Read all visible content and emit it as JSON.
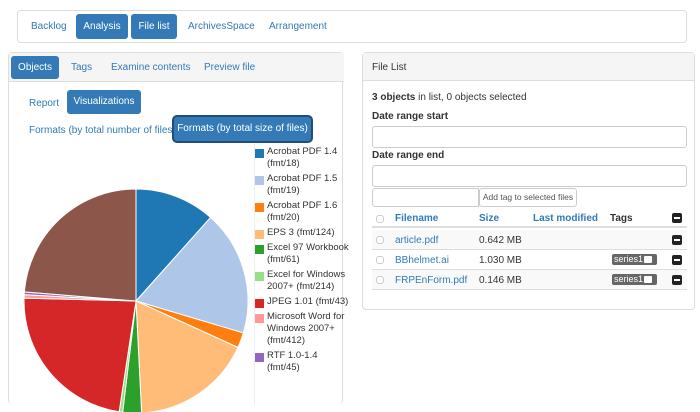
{
  "nav": {
    "tabs": [
      "Backlog",
      "Analysis",
      "File list",
      "ArchivesSpace",
      "Arrangement"
    ]
  },
  "left_panel": {
    "tabs": [
      "Objects",
      "Tags",
      "Examine contents",
      "Preview file"
    ],
    "subtabs": [
      "Report",
      "Visualizations"
    ],
    "chart_options": [
      "Formats (by total number of files)",
      "Formats (by total size of files)"
    ]
  },
  "chart_data": {
    "type": "pie",
    "categories": [
      "Acrobat PDF 1.4 (fmt/18)",
      "Acrobat PDF 1.5 (fmt/19)",
      "Acrobat PDF 1.6 (fmt/20)",
      "EPS 3 (fmt/124)",
      "Excel 97 Workbook (fmt/61)",
      "Excel for Windows 2007+ (fmt/214)",
      "JPEG 1.01 (fmt/43)",
      "Microsoft Word for Windows 2007+ (fmt/412)",
      "RTF 1.0-1.4 (fmt/45)",
      null
    ],
    "values": [
      11.6,
      18,
      2.2,
      17.4,
      2.7,
      0.5,
      23,
      0.5,
      0.4,
      23.7
    ],
    "colors": [
      "#1f77b4",
      "#aec7e8",
      "#ff7f0e",
      "#ffbb78",
      "#2ca02c",
      "#98df8a",
      "#d62728",
      "#ff9896",
      "#9467bd",
      "#8c564b"
    ]
  },
  "file_list": {
    "title": "File List",
    "summary_count": "3 objects",
    "summary_rest": "in list, 0 objects selected",
    "date_start": "Date range start",
    "date_end": "Date range end",
    "add_tag_button": "Add tag to selected files",
    "columns": [
      "Filename",
      "Size",
      "Last modified",
      "Tags"
    ],
    "rows": [
      {
        "filename": "article.pdf",
        "size": "0.642 MB",
        "tags": []
      },
      {
        "filename": "BBhelmet.ai",
        "size": "1.030 MB",
        "tags": [
          "series1"
        ]
      },
      {
        "filename": "FRPEnForm.pdf",
        "size": "0.146 MB",
        "tags": [
          "series1"
        ]
      }
    ]
  }
}
